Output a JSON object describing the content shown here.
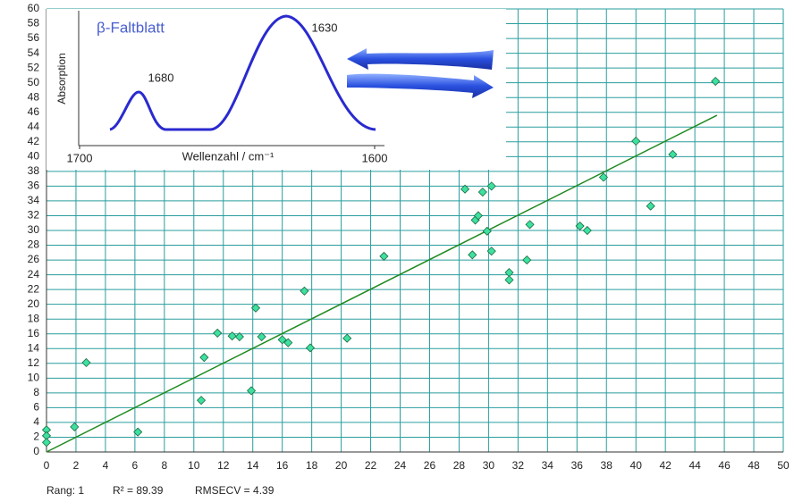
{
  "chart_data": [
    {
      "type": "scatter",
      "x": [
        0,
        0,
        0,
        1.9,
        2.7,
        6.2,
        10.5,
        10.7,
        11.6,
        12.6,
        13.1,
        13.9,
        14.2,
        14.6,
        16.0,
        16.4,
        17.5,
        17.9,
        20.4,
        22.9,
        28.4,
        28.9,
        29.1,
        29.3,
        29.6,
        29.9,
        30.2,
        30.2,
        31.4,
        31.4,
        32.6,
        32.8,
        36.2,
        36.7,
        37.8,
        40.0,
        41.0,
        42.5,
        45.4
      ],
      "values": [
        3.0,
        2.2,
        1.3,
        3.4,
        12.1,
        2.7,
        7.0,
        12.8,
        16.1,
        15.7,
        15.6,
        8.3,
        19.5,
        15.6,
        15.2,
        14.8,
        21.8,
        14.1,
        15.4,
        26.5,
        35.6,
        26.7,
        31.4,
        32.0,
        35.2,
        29.9,
        36.0,
        27.2,
        24.3,
        23.3,
        26.0,
        30.8,
        30.6,
        30.0,
        37.2,
        42.1,
        33.3,
        40.3,
        50.2
      ],
      "color": "#3ee0a0",
      "fit": {
        "x": [
          0,
          45.5
        ],
        "values": [
          0,
          45.6
        ],
        "color": "#1f8a1f"
      },
      "xlim": [
        0,
        50
      ],
      "xticks": [
        0,
        2,
        4,
        6,
        8,
        10,
        12,
        14,
        16,
        18,
        20,
        22,
        24,
        26,
        28,
        30,
        32,
        34,
        36,
        38,
        40,
        42,
        44,
        46,
        48,
        50
      ],
      "ylim": [
        0,
        60
      ],
      "yticks": [
        0,
        2,
        4,
        6,
        8,
        10,
        12,
        14,
        16,
        18,
        20,
        22,
        24,
        26,
        28,
        30,
        32,
        34,
        36,
        38,
        40,
        42,
        44,
        46,
        48,
        50,
        52,
        54,
        56,
        58,
        60
      ],
      "grid": true,
      "annotations": [
        "Rang: 1",
        "R² = 89.39",
        "RMSECV = 4.39"
      ]
    },
    {
      "type": "line",
      "title": "β-Faltblatt",
      "ylabel": "Absorption",
      "xlabel": "Wellenzahl / cm⁻¹",
      "xlim": [
        1700,
        1600
      ],
      "xticks": [
        1700,
        1600
      ],
      "annotations": [
        "1680",
        "1630"
      ]
    }
  ]
}
